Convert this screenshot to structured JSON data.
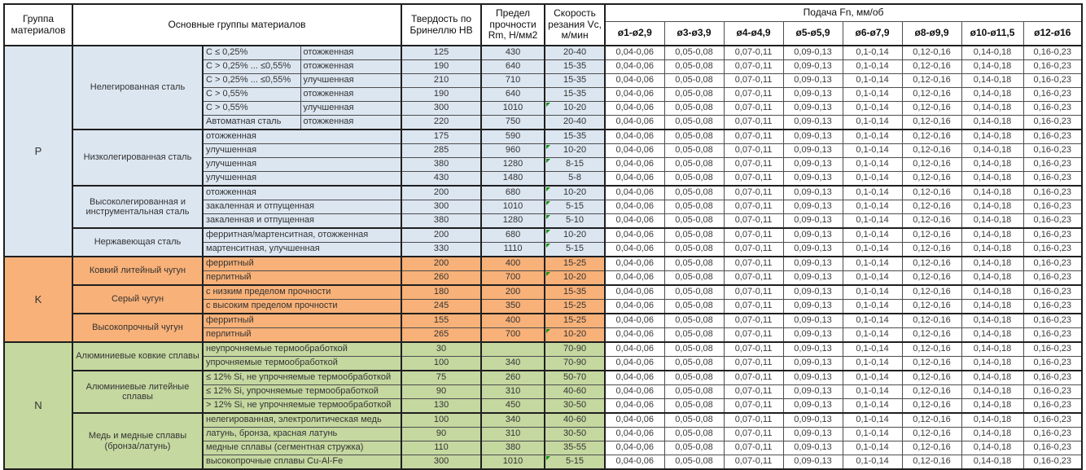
{
  "header": {
    "group_col": "Группа материалов",
    "main_col": "Основные группы материалов",
    "hb_col": "Твердость по Бринеллю HB",
    "rm_col": "Предел прочности Rm, Н/мм2",
    "vc_col": "Скорость резания Vc, м/мин",
    "feed_col": "Подача Fn, мм/об",
    "diameters": [
      "ø1-ø2,9",
      "ø3-ø3,9",
      "ø4-ø4,9",
      "ø5-ø5,9",
      "ø6-ø7,9",
      "ø8-ø9,9",
      "ø10-ø11,5",
      "ø12-ø16"
    ]
  },
  "feed_values": [
    "0,04-0,06",
    "0,05-0,08",
    "0,07-0,11",
    "0,09-0,13",
    "0,1-0,14",
    "0,12-0,16",
    "0,14-0,18",
    "0,16-0,23"
  ],
  "colors": {
    "group_P": "#dce6f1",
    "group_K": "#f8b178",
    "group_N": "#c5d8a0",
    "flag_triangle": "#169416",
    "border": "#1f1f1f"
  },
  "groups": [
    {
      "code": "P",
      "color": "#dce6f1",
      "subgroups": [
        {
          "name": "Нелегированная сталь",
          "rows": [
            {
              "char": "C ≤ 0,25%",
              "state": "отожженная",
              "hb": "125",
              "rm": "430",
              "vc": "20-40",
              "flag": false
            },
            {
              "char": "C > 0,25% ... ≤0,55%",
              "state": "отожженная",
              "hb": "190",
              "rm": "640",
              "vc": "15-35",
              "flag": false
            },
            {
              "char": "C > 0,25% ... ≤0,55%",
              "state": "улучшенная",
              "hb": "210",
              "rm": "710",
              "vc": "15-35",
              "flag": false
            },
            {
              "char": "C > 0,55%",
              "state": "отожженная",
              "hb": "190",
              "rm": "640",
              "vc": "15-35",
              "flag": false
            },
            {
              "char": "C > 0,55%",
              "state": "улучшенная",
              "hb": "300",
              "rm": "1010",
              "vc": "10-20",
              "flag": true
            },
            {
              "char": "Автоматная сталь",
              "state": "отожженная",
              "hb": "220",
              "rm": "750",
              "vc": "20-40",
              "flag": false
            }
          ]
        },
        {
          "name": "Низколегированная сталь",
          "rows": [
            {
              "char": "отожженная",
              "state": null,
              "hb": "175",
              "rm": "590",
              "vc": "15-35",
              "flag": false
            },
            {
              "char": "улучшенная",
              "state": null,
              "hb": "285",
              "rm": "960",
              "vc": "10-20",
              "flag": true
            },
            {
              "char": "улучшенная",
              "state": null,
              "hb": "380",
              "rm": "1280",
              "vc": "8-15",
              "flag": true
            },
            {
              "char": "улучшенная",
              "state": null,
              "hb": "430",
              "rm": "1480",
              "vc": "5-8",
              "flag": false
            }
          ]
        },
        {
          "name": "Высоколегированная и инструментальная сталь",
          "rows": [
            {
              "char": "отожженная",
              "state": null,
              "hb": "200",
              "rm": "680",
              "vc": "10-20",
              "flag": true
            },
            {
              "char": "закаленная и отпущенная",
              "state": null,
              "hb": "300",
              "rm": "1010",
              "vc": "5-15",
              "flag": true
            },
            {
              "char": "закаленная и отпущенная",
              "state": null,
              "hb": "380",
              "rm": "1280",
              "vc": "5-10",
              "flag": true
            }
          ]
        },
        {
          "name": "Нержавеющая сталь",
          "rows": [
            {
              "char": "ферритная/мартенситная, отожженная",
              "state": null,
              "hb": "200",
              "rm": "680",
              "vc": "10-20",
              "flag": true
            },
            {
              "char": "мартенситная, улучшенная",
              "state": null,
              "hb": "330",
              "rm": "1110",
              "vc": "5-15",
              "flag": true
            }
          ]
        }
      ]
    },
    {
      "code": "K",
      "color": "#f8b178",
      "subgroups": [
        {
          "name": "Ковкий литейный чугун",
          "rows": [
            {
              "char": "ферритный",
              "state": null,
              "hb": "200",
              "rm": "400",
              "vc": "15-25",
              "flag": false
            },
            {
              "char": "перлитный",
              "state": null,
              "hb": "260",
              "rm": "700",
              "vc": "10-20",
              "flag": true
            }
          ]
        },
        {
          "name": "Серый чугун",
          "rows": [
            {
              "char": "с низким пределом прочности",
              "state": null,
              "hb": "180",
              "rm": "200",
              "vc": "15-35",
              "flag": false
            },
            {
              "char": "с высоким пределом прочности",
              "state": null,
              "hb": "245",
              "rm": "350",
              "vc": "15-25",
              "flag": false
            }
          ]
        },
        {
          "name": "Высокопрочный чугун",
          "rows": [
            {
              "char": "ферритный",
              "state": null,
              "hb": "155",
              "rm": "400",
              "vc": "15-25",
              "flag": false
            },
            {
              "char": "перлитный",
              "state": null,
              "hb": "265",
              "rm": "700",
              "vc": "10-20",
              "flag": true
            }
          ]
        }
      ]
    },
    {
      "code": "N",
      "color": "#c5d8a0",
      "subgroups": [
        {
          "name": "Алюминиевые ковкие сплавы",
          "rows": [
            {
              "char": "неупрочняемые термообработкой",
              "state": null,
              "hb": "30",
              "rm": "",
              "vc": "70-90",
              "flag": false
            },
            {
              "char": "упрочняемые термообработкой",
              "state": null,
              "hb": "100",
              "rm": "340",
              "vc": "70-90",
              "flag": false
            }
          ]
        },
        {
          "name": "Алюминиевые литейные сплавы",
          "rows": [
            {
              "char": "≤ 12% Si, не упрочняемые термообработкой",
              "state": null,
              "hb": "75",
              "rm": "260",
              "vc": "50-70",
              "flag": false
            },
            {
              "char": "≤ 12% Si, упрочняемые термообработкой",
              "state": null,
              "hb": "90",
              "rm": "310",
              "vc": "40-60",
              "flag": false
            },
            {
              "char": "> 12% Si, не упрочняемые термообработкой",
              "state": null,
              "hb": "130",
              "rm": "450",
              "vc": "30-50",
              "flag": false
            }
          ]
        },
        {
          "name": "Медь и медные сплавы (бронза/латунь)",
          "rows": [
            {
              "char": "нелегированная, электролитическая медь",
              "state": null,
              "hb": "100",
              "rm": "340",
              "vc": "40-60",
              "flag": false
            },
            {
              "char": "латунь, бронза, красная латунь",
              "state": null,
              "hb": "90",
              "rm": "310",
              "vc": "30-50",
              "flag": false
            },
            {
              "char": "медные сплавы (сегментная стружка)",
              "state": null,
              "hb": "110",
              "rm": "380",
              "vc": "35-55",
              "flag": false
            },
            {
              "char": "высокопрочные сплавы Cu-Al-Fe",
              "state": null,
              "hb": "300",
              "rm": "1010",
              "vc": "5-15",
              "flag": true
            }
          ]
        }
      ]
    }
  ]
}
